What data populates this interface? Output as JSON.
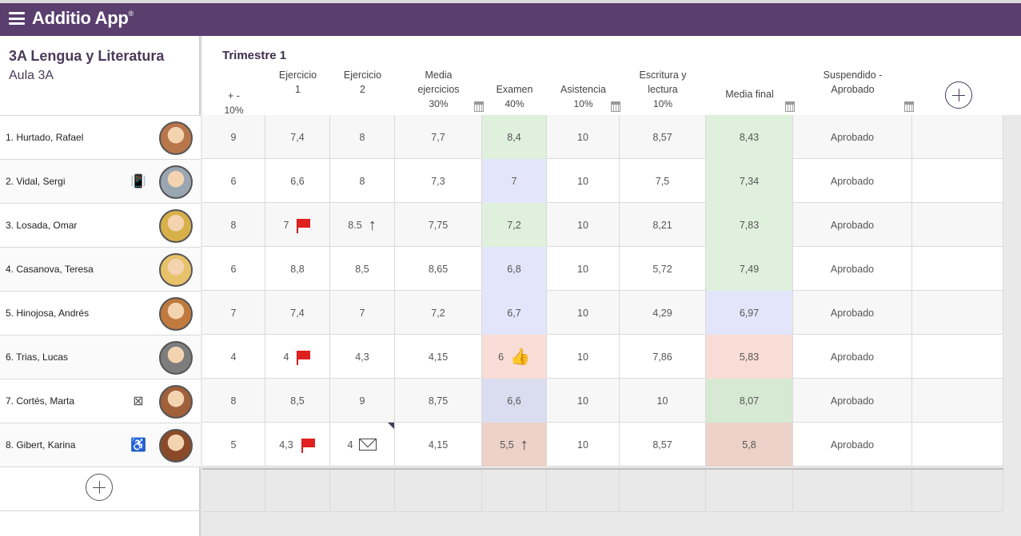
{
  "app": {
    "name": "Additio App",
    "trademark": "®"
  },
  "class": {
    "title": "3A Lengua y Literatura",
    "room": "Aula 3A"
  },
  "term": "Trimestre 1",
  "columns": [
    {
      "line1": "+ -",
      "line2": "",
      "pct": "10%"
    },
    {
      "line1": "Ejercicio",
      "line2": "1",
      "pct": ""
    },
    {
      "line1": "Ejercicio",
      "line2": "2",
      "pct": ""
    },
    {
      "line1": "Media",
      "line2": "ejercicios",
      "pct": "30%"
    },
    {
      "line1": "Examen",
      "line2": "",
      "pct": "40%"
    },
    {
      "line1": "Asistencia",
      "line2": "",
      "pct": "10%"
    },
    {
      "line1": "Escritura y",
      "line2": "lectura",
      "pct": "10%"
    },
    {
      "line1": "Media final",
      "line2": "",
      "pct": ""
    },
    {
      "line1": "Suspendido -",
      "line2": "Aprobado",
      "pct": ""
    }
  ],
  "students": [
    {
      "name": "1. Hurtado, Rafael",
      "icon": "",
      "avatar": "#b8764a",
      "cells": [
        "9",
        "7,4",
        "8",
        "7,7",
        "8,4",
        "10",
        "8,57",
        "8,43",
        "Aprobado"
      ],
      "exam_color": "#dff0dc",
      "final_color": "#dff0dc",
      "marks": {}
    },
    {
      "name": "2. Vidal, Sergi",
      "icon": "phone-ringing-icon",
      "avatar": "#9aa6b2",
      "cells": [
        "6",
        "6,6",
        "8",
        "7,3",
        "7",
        "10",
        "7,5",
        "7,34",
        "Aprobado"
      ],
      "exam_color": "#e3e6fb",
      "final_color": "#dff0dc",
      "marks": {}
    },
    {
      "name": "3. Losada, Omar",
      "icon": "",
      "avatar": "#d8b04a",
      "cells": [
        "8",
        "7",
        "8.5",
        "7,75",
        "7,2",
        "10",
        "8,21",
        "7,83",
        "Aprobado"
      ],
      "exam_color": "#dff0dc",
      "final_color": "#dff0dc",
      "marks": {
        "1": "flag",
        "2": "arrow"
      }
    },
    {
      "name": "4. Casanova, Teresa",
      "icon": "",
      "avatar": "#e8c26a",
      "cells": [
        "6",
        "8,8",
        "8,5",
        "8,65",
        "6,8",
        "10",
        "5,72",
        "7,49",
        "Aprobado"
      ],
      "exam_color": "#e3e6fb",
      "final_color": "#dff0dc",
      "marks": {}
    },
    {
      "name": "5. Hinojosa, Andrés",
      "icon": "",
      "avatar": "#c07a3e",
      "cells": [
        "7",
        "7,4",
        "7",
        "7,2",
        "6,7",
        "10",
        "4,29",
        "6,97",
        "Aprobado"
      ],
      "exam_color": "#e3e6fb",
      "final_color": "#e3e6fb",
      "marks": {}
    },
    {
      "name": "6. Trias, Lucas",
      "icon": "",
      "avatar": "#7d7d7d",
      "cells": [
        "4",
        "4",
        "4,3",
        "4,15",
        "6",
        "10",
        "7,86",
        "5,83",
        "Aprobado"
      ],
      "exam_color": "#f8ddd6",
      "final_color": "#f8ddd6",
      "marks": {
        "1": "flag",
        "4": "thumb"
      }
    },
    {
      "name": "7. Cortés, Marta",
      "icon": "no-image-icon",
      "avatar": "#a0603a",
      "cells": [
        "8",
        "8,5",
        "9",
        "8,75",
        "6,6",
        "10",
        "10",
        "8,07",
        "Aprobado"
      ],
      "exam_color": "#dadcf0",
      "final_color": "#d6ead3",
      "marks": {}
    },
    {
      "name": "8. Gibert, Karina",
      "icon": "wheelchair-icon",
      "avatar": "#8a4a2a",
      "cells": [
        "5",
        "4,3",
        "4",
        "4,15",
        "5,5",
        "10",
        "8,57",
        "5,8",
        "Aprobado"
      ],
      "exam_color": "#ecd2c8",
      "final_color": "#ecd2c8",
      "marks": {
        "1": "flag",
        "2": "mail",
        "4": "arrow"
      }
    }
  ]
}
